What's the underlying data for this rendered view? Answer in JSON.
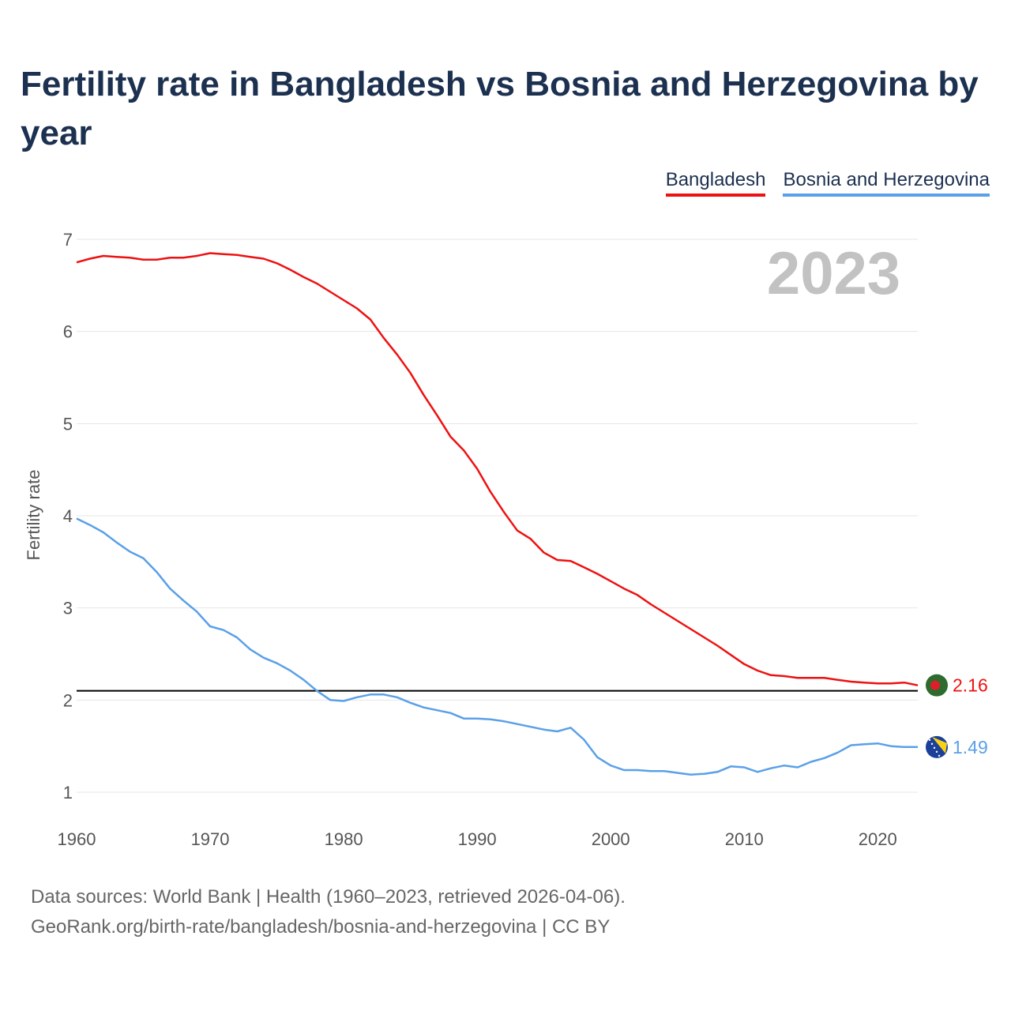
{
  "title": "Fertility rate in Bangladesh vs Bosnia and Herzegovina by year",
  "legend": [
    {
      "name": "Bangladesh",
      "color": "#ee1111"
    },
    {
      "name": "Bosnia and Herzegovina",
      "color": "#5aa0e8"
    }
  ],
  "year_badge": "2023",
  "footer": {
    "line1": "Data sources: World Bank | Health (1960–2023, retrieved 2026-04-06).",
    "line2": "GeoRank.org/birth-rate/bangladesh/bosnia-and-herzegovina | CC BY"
  },
  "chart_data": {
    "type": "line",
    "title": "Fertility rate in Bangladesh vs Bosnia and Herzegovina by year",
    "xlabel": "",
    "ylabel": "Fertility rate",
    "xlim": [
      1960,
      2023
    ],
    "ylim": [
      1,
      7
    ],
    "x_ticks": [
      1960,
      1970,
      1980,
      1990,
      2000,
      2010,
      2020
    ],
    "y_ticks": [
      1,
      2,
      3,
      4,
      5,
      6,
      7
    ],
    "grid": true,
    "reference_line": {
      "y": 2.1,
      "color": "#000000"
    },
    "x": [
      1960,
      1961,
      1962,
      1963,
      1964,
      1965,
      1966,
      1967,
      1968,
      1969,
      1970,
      1971,
      1972,
      1973,
      1974,
      1975,
      1976,
      1977,
      1978,
      1979,
      1980,
      1981,
      1982,
      1983,
      1984,
      1985,
      1986,
      1987,
      1988,
      1989,
      1990,
      1991,
      1992,
      1993,
      1994,
      1995,
      1996,
      1997,
      1998,
      1999,
      2000,
      2001,
      2002,
      2003,
      2004,
      2005,
      2006,
      2007,
      2008,
      2009,
      2010,
      2011,
      2012,
      2013,
      2014,
      2015,
      2016,
      2017,
      2018,
      2019,
      2020,
      2021,
      2022,
      2023
    ],
    "series": [
      {
        "name": "Bangladesh",
        "color": "#ee1111",
        "end_label": "2.16",
        "values": [
          6.75,
          6.79,
          6.82,
          6.81,
          6.8,
          6.78,
          6.78,
          6.8,
          6.8,
          6.82,
          6.85,
          6.84,
          6.83,
          6.81,
          6.79,
          6.74,
          6.67,
          6.59,
          6.52,
          6.43,
          6.34,
          6.25,
          6.13,
          5.93,
          5.75,
          5.55,
          5.31,
          5.09,
          4.86,
          4.71,
          4.51,
          4.26,
          4.04,
          3.84,
          3.75,
          3.6,
          3.52,
          3.51,
          3.44,
          3.37,
          3.29,
          3.21,
          3.14,
          3.04,
          2.95,
          2.86,
          2.77,
          2.68,
          2.59,
          2.49,
          2.39,
          2.32,
          2.27,
          2.26,
          2.24,
          2.24,
          2.24,
          2.22,
          2.2,
          2.19,
          2.18,
          2.18,
          2.19,
          2.16
        ]
      },
      {
        "name": "Bosnia and Herzegovina",
        "color": "#5aa0e8",
        "end_label": "1.49",
        "values": [
          3.97,
          3.9,
          3.82,
          3.71,
          3.61,
          3.54,
          3.39,
          3.21,
          3.08,
          2.96,
          2.8,
          2.76,
          2.68,
          2.55,
          2.46,
          2.4,
          2.32,
          2.22,
          2.1,
          2.0,
          1.99,
          2.03,
          2.06,
          2.06,
          2.03,
          1.97,
          1.92,
          1.89,
          1.86,
          1.8,
          1.8,
          1.79,
          1.77,
          1.74,
          1.71,
          1.68,
          1.66,
          1.7,
          1.57,
          1.38,
          1.29,
          1.24,
          1.24,
          1.23,
          1.23,
          1.21,
          1.19,
          1.2,
          1.22,
          1.28,
          1.27,
          1.22,
          1.26,
          1.29,
          1.27,
          1.33,
          1.37,
          1.43,
          1.51,
          1.52,
          1.53,
          1.5,
          1.49,
          1.49
        ]
      }
    ]
  }
}
